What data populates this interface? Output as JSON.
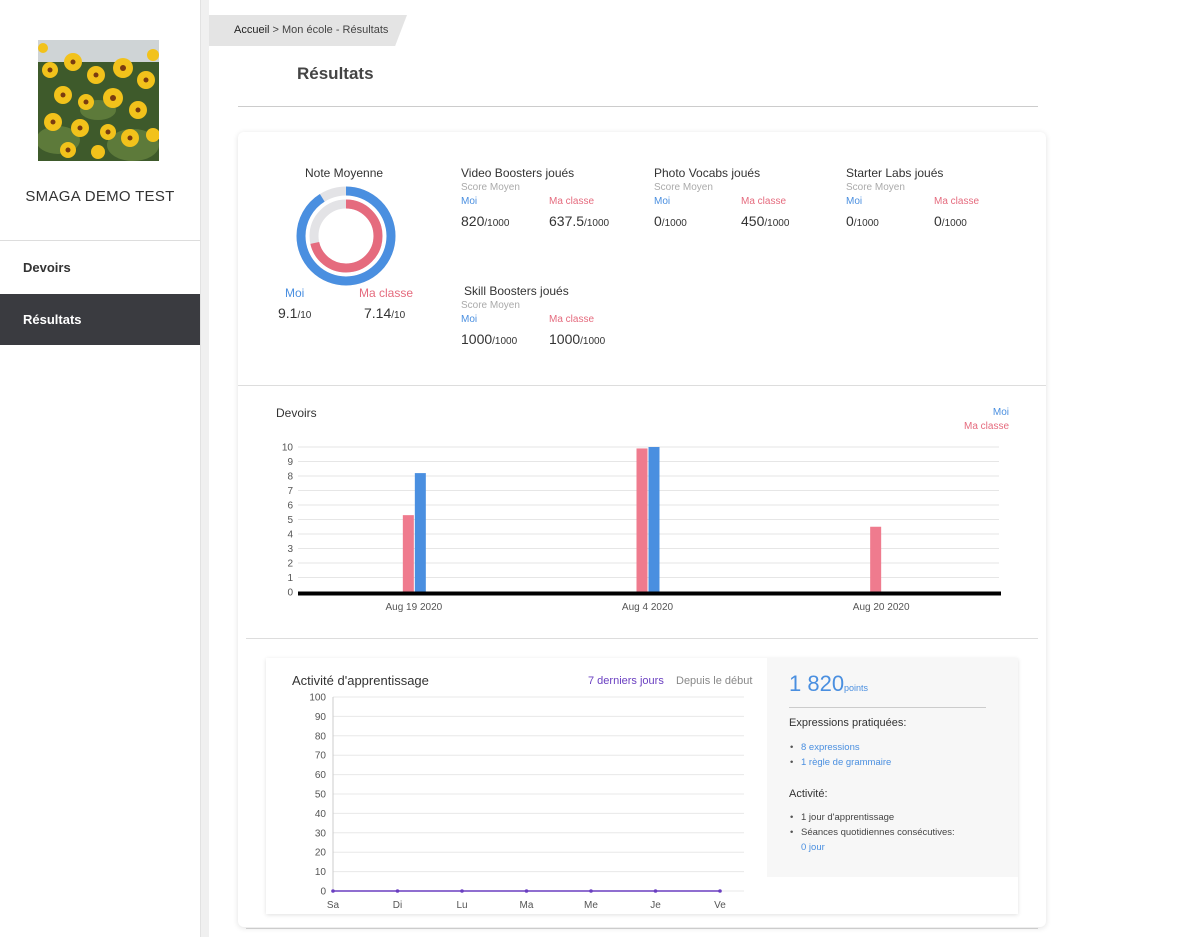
{
  "sidebar": {
    "user_name": "SMAGA DEMO TEST",
    "items": [
      {
        "label": "Devoirs",
        "active": false
      },
      {
        "label": "Résultats",
        "active": true
      }
    ]
  },
  "breadcrumb": {
    "home": "Accueil",
    "rest": " > Mon école - Résultats"
  },
  "page_title": "Résultats",
  "note_moyenne": {
    "title": "Note Moyenne",
    "moi_label": "Moi",
    "classe_label": "Ma classe",
    "moi_value": "9.1",
    "moi_unit": "/10",
    "classe_value": "7.14",
    "classe_unit": "/10",
    "moi_fraction": 0.91,
    "classe_fraction": 0.714,
    "colors": {
      "moi": "#4a8fe0",
      "classe": "#e56b7e",
      "track": "#e3e3e6"
    }
  },
  "stats": [
    {
      "title": "Video Boosters joués",
      "sub": "Score Moyen",
      "moi_label": "Moi",
      "classe_label": "Ma classe",
      "moi": "820",
      "classe": "637.5",
      "unit": "/1000"
    },
    {
      "title": "Photo Vocabs joués",
      "sub": "Score Moyen",
      "moi_label": "Moi",
      "classe_label": "Ma classe",
      "moi": "0",
      "classe": "450",
      "unit": "/1000"
    },
    {
      "title": "Starter Labs joués",
      "sub": "Score Moyen",
      "moi_label": "Moi",
      "classe_label": "Ma classe",
      "moi": "0",
      "classe": "0",
      "unit": "/1000"
    },
    {
      "title": "Skill Boosters joués",
      "sub": "Score Moyen",
      "moi_label": "Moi",
      "classe_label": "Ma classe",
      "moi": "1000",
      "classe": "1000",
      "unit": "/1000"
    }
  ],
  "chart_data": [
    {
      "type": "bar",
      "title": "Devoirs",
      "categories": [
        "Aug 19 2020",
        "Aug 4 2020",
        "Aug 20 2020"
      ],
      "series": [
        {
          "name": "Ma classe",
          "values": [
            5.3,
            9.9,
            4.5
          ],
          "color": "#ef7b8e"
        },
        {
          "name": "Moi",
          "values": [
            8.2,
            10,
            0
          ],
          "color": "#4a8fe0"
        }
      ],
      "ylim": [
        0,
        10
      ],
      "yticks": [
        "0",
        "1",
        "2",
        "3",
        "4",
        "5",
        "6",
        "7",
        "8",
        "9",
        "10"
      ],
      "grid": true,
      "legend": "top-right"
    },
    {
      "type": "line",
      "title": "Activité d'apprentissage",
      "categories": [
        "Sa",
        "Di",
        "Lu",
        "Ma",
        "Me",
        "Je",
        "Ve"
      ],
      "series": [
        {
          "values": [
            0,
            0,
            0,
            0,
            0,
            0,
            0
          ],
          "color": "#6a3fc1"
        }
      ],
      "ylim": [
        0,
        100
      ],
      "yticks": [
        "0",
        "10",
        "20",
        "30",
        "40",
        "50",
        "60",
        "70",
        "80",
        "90",
        "100"
      ],
      "grid": true
    }
  ],
  "activity": {
    "tab_recent": "7 derniers jours",
    "tab_all": "Depuis le début",
    "tab_recent_color": "#6a3fc1",
    "points": "1 820",
    "points_unit": "points",
    "expr_title": "Expressions pratiquées:",
    "expr_items": [
      "8 expressions",
      "1 règle de grammaire"
    ],
    "act_title": "Activité:",
    "act_day": "1 jour d'apprentissage",
    "act_seances": "Séances quotidiennes consécutives:",
    "act_streak": "0 jour"
  }
}
